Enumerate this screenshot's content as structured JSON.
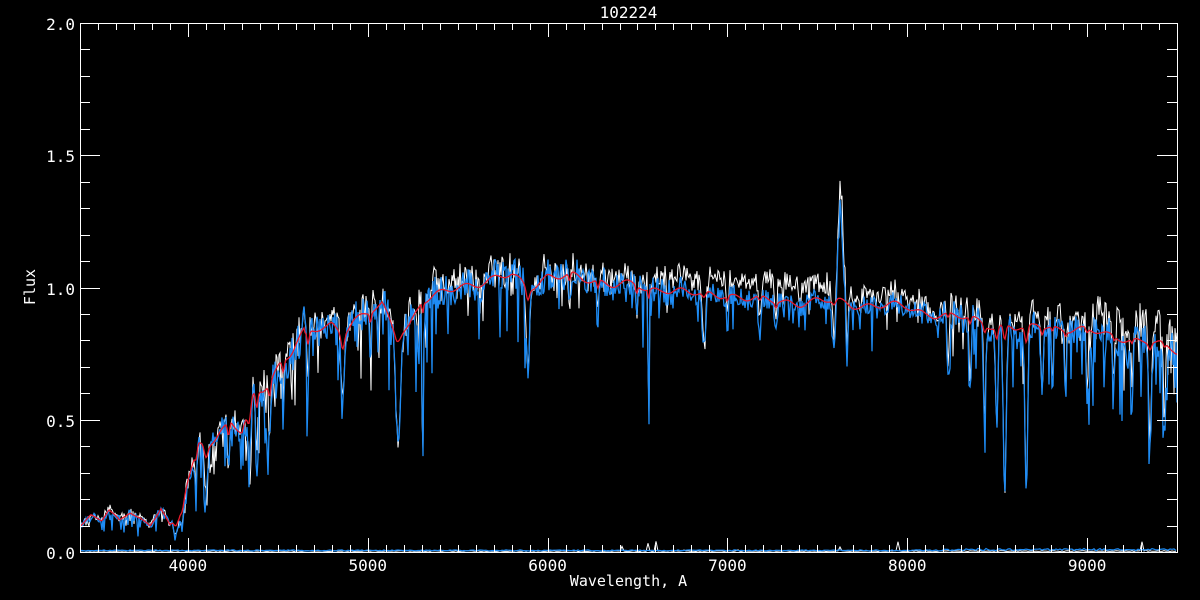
{
  "window": {
    "background_color": "#000000"
  },
  "title": "102224",
  "axes": {
    "xlabel": "Wavelength, A",
    "ylabel": "Flux",
    "xlim": [
      3400,
      9500
    ],
    "ylim": [
      0.0,
      2.0
    ],
    "x_minor_step": 100,
    "y_minor_step": 0.1,
    "x_ticks": [
      {
        "value": 4000,
        "label": "4000"
      },
      {
        "value": 5000,
        "label": "5000"
      },
      {
        "value": 6000,
        "label": "6000"
      },
      {
        "value": 7000,
        "label": "7000"
      },
      {
        "value": 8000,
        "label": "8000"
      },
      {
        "value": 9000,
        "label": "9000"
      }
    ],
    "y_ticks": [
      {
        "value": 0.0,
        "label": "0.0"
      },
      {
        "value": 0.5,
        "label": "0.5"
      },
      {
        "value": 1.0,
        "label": "1.0"
      },
      {
        "value": 1.5,
        "label": "1.5"
      },
      {
        "value": 2.0,
        "label": "2.0"
      }
    ]
  },
  "colors": {
    "background": "#000000",
    "axis": "#FFFFFF",
    "text": "#FFFFFF",
    "observed_white": "#FFFFFF",
    "observed_blue": "#1E8CF5",
    "model_red": "#E8192C"
  },
  "chart_data": {
    "type": "line",
    "title": "102224",
    "xlabel": "Wavelength, A",
    "ylabel": "Flux",
    "xlim": [
      3400,
      9500
    ],
    "ylim": [
      0.0,
      2.0
    ],
    "grid": false,
    "legend": "none",
    "series": [
      {
        "name": "observed-spectrum-white",
        "color": "#FFFFFF",
        "style": "noisy-line"
      },
      {
        "name": "observed-spectrum-blue",
        "color": "#1E8CF5",
        "style": "noisy-line"
      },
      {
        "name": "model-spectrum-red",
        "color": "#E8192C",
        "style": "smooth-line"
      },
      {
        "name": "noise-floor-blue",
        "color": "#1E8CF5",
        "style": "flat-line",
        "level": 0.004
      }
    ],
    "continuum_points": [
      [
        3400,
        0.1
      ],
      [
        3460,
        0.14
      ],
      [
        3520,
        0.12
      ],
      [
        3560,
        0.16
      ],
      [
        3620,
        0.115
      ],
      [
        3680,
        0.15
      ],
      [
        3740,
        0.125
      ],
      [
        3790,
        0.1
      ],
      [
        3850,
        0.17
      ],
      [
        3900,
        0.1
      ],
      [
        3950,
        0.13
      ],
      [
        4000,
        0.27
      ],
      [
        4060,
        0.4
      ],
      [
        4120,
        0.42
      ],
      [
        4180,
        0.46
      ],
      [
        4240,
        0.49
      ],
      [
        4300,
        0.45
      ],
      [
        4360,
        0.57
      ],
      [
        4420,
        0.62
      ],
      [
        4500,
        0.7
      ],
      [
        4600,
        0.8
      ],
      [
        4700,
        0.83
      ],
      [
        4800,
        0.86
      ],
      [
        4860,
        0.83
      ],
      [
        4920,
        0.88
      ],
      [
        5000,
        0.9
      ],
      [
        5080,
        0.93
      ],
      [
        5160,
        0.82
      ],
      [
        5230,
        0.86
      ],
      [
        5300,
        0.95
      ],
      [
        5400,
        0.97
      ],
      [
        5500,
        1.0
      ],
      [
        5600,
        1.02
      ],
      [
        5700,
        1.03
      ],
      [
        5800,
        1.045
      ],
      [
        5890,
        1.0
      ],
      [
        6000,
        1.045
      ],
      [
        6100,
        1.04
      ],
      [
        6200,
        1.03
      ],
      [
        6300,
        1.025
      ],
      [
        6400,
        1.015
      ],
      [
        6500,
        1.005
      ],
      [
        6560,
        0.98
      ],
      [
        6650,
        1.0
      ],
      [
        6750,
        0.99
      ],
      [
        6870,
        0.965
      ],
      [
        7000,
        0.975
      ],
      [
        7100,
        0.965
      ],
      [
        7200,
        0.95
      ],
      [
        7300,
        0.945
      ],
      [
        7400,
        0.945
      ],
      [
        7500,
        0.95
      ],
      [
        7600,
        0.945
      ],
      [
        7700,
        0.935
      ],
      [
        7800,
        0.935
      ],
      [
        7900,
        0.93
      ],
      [
        8000,
        0.925
      ],
      [
        8100,
        0.905
      ],
      [
        8200,
        0.895
      ],
      [
        8300,
        0.885
      ],
      [
        8400,
        0.875
      ],
      [
        8500,
        0.85
      ],
      [
        8550,
        0.862
      ],
      [
        8600,
        0.845
      ],
      [
        8660,
        0.835
      ],
      [
        8720,
        0.86
      ],
      [
        8800,
        0.852
      ],
      [
        8900,
        0.842
      ],
      [
        9000,
        0.835
      ],
      [
        9100,
        0.825
      ],
      [
        9200,
        0.81
      ],
      [
        9300,
        0.795
      ],
      [
        9400,
        0.785
      ],
      [
        9500,
        0.76
      ]
    ],
    "absorption_features": [
      {
        "center": 3933,
        "sigma": 10,
        "depth_obs": 0.5,
        "depth_model": 0.2
      },
      {
        "center": 3968,
        "sigma": 9,
        "depth_obs": 0.45,
        "depth_model": 0.15
      },
      {
        "center": 4045,
        "sigma": 6,
        "depth_obs": 0.3,
        "depth_model": 0.08
      },
      {
        "center": 4101,
        "sigma": 10,
        "depth_obs": 0.45,
        "depth_model": 0.12
      },
      {
        "center": 4226,
        "sigma": 6,
        "depth_obs": 0.35,
        "depth_model": 0.1
      },
      {
        "center": 4340,
        "sigma": 9,
        "depth_obs": 0.4,
        "depth_model": 0.12
      },
      {
        "center": 4383,
        "sigma": 6,
        "depth_obs": 0.35,
        "depth_model": 0.1
      },
      {
        "center": 4455,
        "sigma": 6,
        "depth_obs": 0.3,
        "depth_model": 0.08
      },
      {
        "center": 4530,
        "sigma": 6,
        "depth_obs": 0.25,
        "depth_model": 0.06
      },
      {
        "center": 4668,
        "sigma": 6,
        "depth_obs": 0.25,
        "depth_model": 0.06
      },
      {
        "center": 4861,
        "sigma": 9,
        "depth_obs": 0.3,
        "depth_model": 0.06
      },
      {
        "center": 5015,
        "sigma": 5,
        "depth_obs": 0.2,
        "depth_model": 0.04
      },
      {
        "center": 5169,
        "sigma": 13,
        "depth_obs": 0.5,
        "depth_model": 0.02
      },
      {
        "center": 5306,
        "sigma": 4,
        "depth_obs": 0.62,
        "depth_model": 0.04
      },
      {
        "center": 5890,
        "sigma": 9,
        "depth_obs": 0.32,
        "depth_model": 0.04
      },
      {
        "center": 6122,
        "sigma": 5,
        "depth_obs": 0.15,
        "depth_model": 0.03
      },
      {
        "center": 6280,
        "sigma": 6,
        "depth_obs": 0.15,
        "depth_model": 0.03
      },
      {
        "center": 6495,
        "sigma": 5,
        "depth_obs": 0.12,
        "depth_model": 0.03
      },
      {
        "center": 6562,
        "sigma": 3,
        "depth_obs": 0.6,
        "depth_model": 0.04
      },
      {
        "center": 6870,
        "sigma": 10,
        "depth_obs": 0.22,
        "depth_model": 0.02
      },
      {
        "center": 7000,
        "sigma": 5,
        "depth_obs": 0.15,
        "depth_model": 0.02
      },
      {
        "center": 7180,
        "sigma": 8,
        "depth_obs": 0.15,
        "depth_model": 0.02
      },
      {
        "center": 7270,
        "sigma": 6,
        "depth_obs": 0.12,
        "depth_model": 0.02
      },
      {
        "center": 7594,
        "sigma": 9,
        "depth_obs": 0.2,
        "depth_model": 0.02
      },
      {
        "center": 7665,
        "sigma": 5,
        "depth_obs": 0.25,
        "depth_model": 0.0
      },
      {
        "center": 8227,
        "sigma": 6,
        "depth_obs": 0.25,
        "depth_model": 0.02
      },
      {
        "center": 8350,
        "sigma": 6,
        "depth_obs": 0.3,
        "depth_model": 0.03
      },
      {
        "center": 8430,
        "sigma": 6,
        "depth_obs": 0.45,
        "depth_model": 0.03
      },
      {
        "center": 8498,
        "sigma": 7,
        "depth_obs": 0.42,
        "depth_model": 0.05
      },
      {
        "center": 8542,
        "sigma": 8,
        "depth_obs": 0.76,
        "depth_model": 0.07
      },
      {
        "center": 8662,
        "sigma": 8,
        "depth_obs": 0.72,
        "depth_model": 0.07
      },
      {
        "center": 8750,
        "sigma": 6,
        "depth_obs": 0.32,
        "depth_model": 0.03
      },
      {
        "center": 8807,
        "sigma": 5,
        "depth_obs": 0.3,
        "depth_model": 0.02
      },
      {
        "center": 8880,
        "sigma": 5,
        "depth_obs": 0.3,
        "depth_model": 0.02
      },
      {
        "center": 9000,
        "sigma": 6,
        "depth_obs": 0.32,
        "depth_model": 0.02
      },
      {
        "center": 9150,
        "sigma": 5,
        "depth_obs": 0.25,
        "depth_model": 0.02
      },
      {
        "center": 9250,
        "sigma": 5,
        "depth_obs": 0.3,
        "depth_model": 0.02
      },
      {
        "center": 9350,
        "sigma": 8,
        "depth_obs": 0.5,
        "depth_model": 0.03
      },
      {
        "center": 9430,
        "sigma": 6,
        "depth_obs": 0.45,
        "depth_model": 0.02
      }
    ],
    "emission_feature": {
      "center": 7628,
      "sigma": 13,
      "amplitude_blue": 0.33,
      "amplitude_white": 0.36,
      "peak_flux": 1.28
    },
    "white_scale_points": [
      [
        3400,
        1.0
      ],
      [
        6500,
        1.0
      ],
      [
        6750,
        1.04
      ],
      [
        7000,
        1.05
      ],
      [
        7650,
        1.05
      ],
      [
        8000,
        1.02
      ],
      [
        8250,
        1.0
      ],
      [
        8600,
        1.01
      ],
      [
        8900,
        1.035
      ],
      [
        9200,
        1.05
      ],
      [
        9500,
        1.06
      ]
    ],
    "noise_bands": [
      {
        "max_wl": 4000,
        "white": 0.055,
        "blue": 0.06,
        "spike_p": 0.3,
        "spike_max": 0.5
      },
      {
        "max_wl": 4650,
        "white": 0.05,
        "blue": 0.05,
        "spike_p": 0.32,
        "spike_max": 0.45
      },
      {
        "max_wl": 5400,
        "white": 0.035,
        "blue": 0.035,
        "spike_p": 0.22,
        "spike_max": 0.35
      },
      {
        "max_wl": 6000,
        "white": 0.03,
        "blue": 0.03,
        "spike_p": 0.15,
        "spike_max": 0.28
      },
      {
        "max_wl": 6700,
        "white": 0.025,
        "blue": 0.028,
        "spike_p": 0.14,
        "spike_max": 0.22
      },
      {
        "max_wl": 8200,
        "white": 0.022,
        "blue": 0.02,
        "spike_p": 0.1,
        "spike_max": 0.16
      },
      {
        "max_wl": 9000,
        "white": 0.03,
        "blue": 0.03,
        "spike_p": 0.16,
        "spike_max": 0.3
      },
      {
        "max_wl": 9500,
        "white": 0.045,
        "blue": 0.045,
        "spike_p": 0.2,
        "spike_max": 0.4
      }
    ],
    "noise_floor": {
      "level": 0.004,
      "color": "#1E8CF5"
    }
  }
}
